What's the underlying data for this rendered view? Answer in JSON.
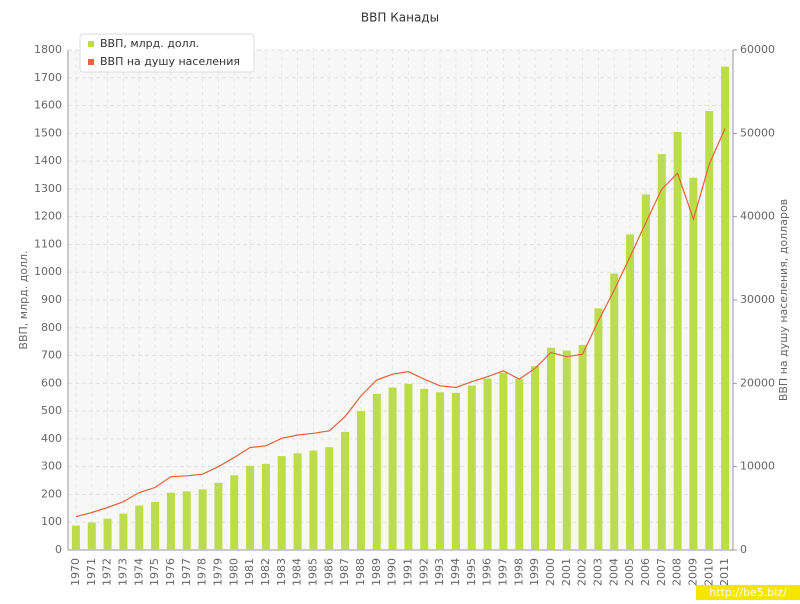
{
  "chart_data": {
    "type": "bar-line",
    "title": "ВВП Канады",
    "categories": [
      "1970",
      "1971",
      "1972",
      "1973",
      "1974",
      "1975",
      "1976",
      "1977",
      "1978",
      "1979",
      "1980",
      "1981",
      "1982",
      "1983",
      "1984",
      "1985",
      "1986",
      "1987",
      "1988",
      "1989",
      "1990",
      "1991",
      "1992",
      "1993",
      "1994",
      "1995",
      "1996",
      "1997",
      "1998",
      "1999",
      "2000",
      "2001",
      "2002",
      "2003",
      "2004",
      "2005",
      "2006",
      "2007",
      "2008",
      "2009",
      "2010",
      "2011"
    ],
    "series": [
      {
        "name": "ВВП, млрд. долл.",
        "type": "bar",
        "color": "#bcdc4c",
        "axis": "y",
        "values": [
          88,
          99,
          113,
          131,
          160,
          173,
          206,
          211,
          218,
          242,
          269,
          303,
          310,
          338,
          348,
          358,
          370,
          425,
          500,
          562,
          585,
          598,
          580,
          568,
          566,
          592,
          617,
          638,
          615,
          662,
          728,
          718,
          738,
          870,
          995,
          1136,
          1280,
          1425,
          1505,
          1340,
          1580,
          1740
        ]
      },
      {
        "name": "ВВП на душу населения",
        "type": "line",
        "color": "#e0653a",
        "axis": "y2",
        "values": [
          4000,
          4500,
          5100,
          5800,
          6900,
          7500,
          8800,
          8900,
          9100,
          10000,
          11100,
          12300,
          12500,
          13400,
          13800,
          14000,
          14300,
          16000,
          18500,
          20400,
          21100,
          21400,
          20500,
          19700,
          19500,
          20200,
          20800,
          21500,
          20500,
          21800,
          23700,
          23200,
          23500,
          27500,
          31200,
          35200,
          39300,
          43300,
          45200,
          39700,
          46300,
          50600
        ]
      }
    ],
    "ylabel": "ВВП, млрд. долл.",
    "y2label": "ВВП на душу населения, долларов",
    "ylim": [
      0,
      1800
    ],
    "yticks": [
      0,
      100,
      200,
      300,
      400,
      500,
      600,
      700,
      800,
      900,
      1000,
      1100,
      1200,
      1300,
      1400,
      1500,
      1600,
      1700,
      1800
    ],
    "y2lim": [
      0,
      60000
    ],
    "y2ticks": [
      0,
      10000,
      20000,
      30000,
      40000,
      50000,
      60000
    ],
    "grid": true,
    "legend": "top-left",
    "watermark": "http://be5.biz/"
  }
}
